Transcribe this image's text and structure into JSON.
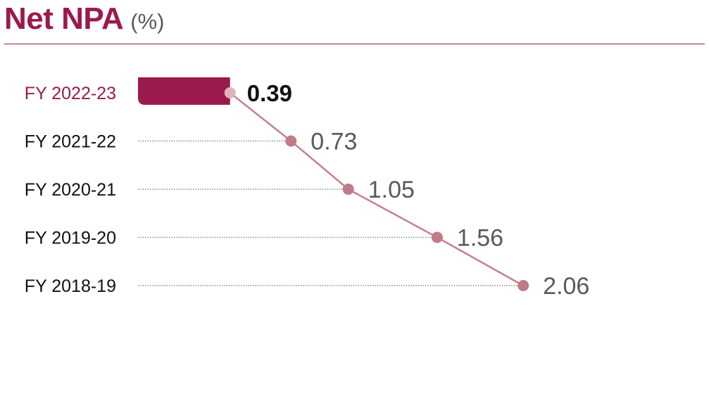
{
  "title": "Net NPA",
  "unit": "(%)",
  "colors": {
    "accent": "#9b1a4e",
    "line": "#c5838f",
    "dots": "#c17a87",
    "highlight_dot": "#e0b3bb",
    "text_dark": "#111111",
    "text_gray": "#58595b"
  },
  "chart_data": {
    "type": "line",
    "categories": [
      "FY 2022-23",
      "FY 2021-22",
      "FY 2020-21",
      "FY 2019-20",
      "FY 2018-19"
    ],
    "values": [
      0.39,
      0.73,
      1.05,
      1.56,
      2.06
    ],
    "value_labels": [
      "0.39",
      "0.73",
      "1.05",
      "1.56",
      "2.06"
    ],
    "highlight_index": 0,
    "orientation": "horizontal",
    "grid": false
  }
}
